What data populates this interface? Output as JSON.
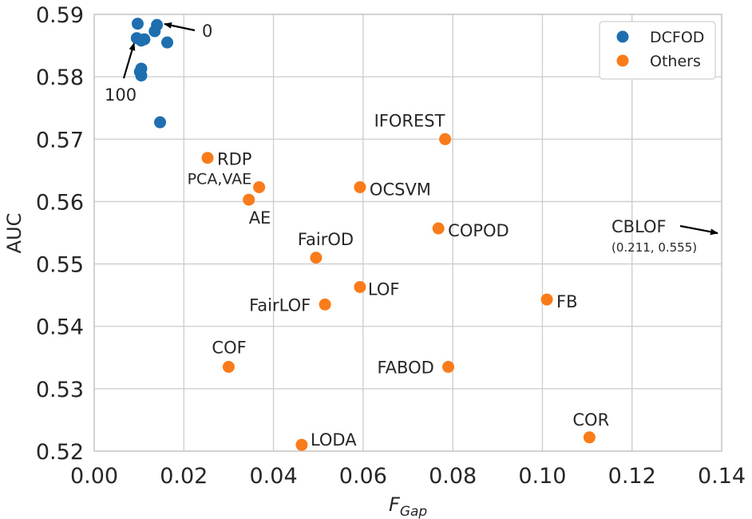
{
  "chart_data": {
    "type": "scatter",
    "xlabel_main": "F",
    "xlabel_sub": "Gap",
    "ylabel": "AUC",
    "xlim": [
      0.0,
      0.14
    ],
    "ylim": [
      0.52,
      0.59
    ],
    "x_ticks": [
      "0.00",
      "0.02",
      "0.04",
      "0.06",
      "0.08",
      "0.10",
      "0.12",
      "0.14"
    ],
    "y_ticks": [
      "0.52",
      "0.53",
      "0.54",
      "0.55",
      "0.56",
      "0.57",
      "0.58",
      "0.59"
    ],
    "grid": true,
    "legend_position": "top-right",
    "colors": {
      "DCFOD": "#1f6fb0",
      "Others": "#f97b1a"
    },
    "series": [
      {
        "name": "DCFOD",
        "points": [
          {
            "x": 0.0097,
            "y": 0.5885
          },
          {
            "x": 0.014,
            "y": 0.5883
          },
          {
            "x": 0.0135,
            "y": 0.5873
          },
          {
            "x": 0.0095,
            "y": 0.5862
          },
          {
            "x": 0.0112,
            "y": 0.586
          },
          {
            "x": 0.0105,
            "y": 0.5858
          },
          {
            "x": 0.0163,
            "y": 0.5855
          },
          {
            "x": 0.0105,
            "y": 0.5813
          },
          {
            "x": 0.0102,
            "y": 0.5808
          },
          {
            "x": 0.0105,
            "y": 0.5802
          },
          {
            "x": 0.0147,
            "y": 0.5727
          }
        ]
      },
      {
        "name": "Others",
        "points": [
          {
            "name": "IFOREST",
            "x": 0.0783,
            "y": 0.57
          },
          {
            "name": "RDP",
            "x": 0.0253,
            "y": 0.567
          },
          {
            "name": "PCA,VAE",
            "x": 0.0368,
            "y": 0.5623
          },
          {
            "name": "OCSVM",
            "x": 0.0593,
            "y": 0.5623
          },
          {
            "name": "AE",
            "x": 0.0345,
            "y": 0.5603
          },
          {
            "name": "COPOD",
            "x": 0.0768,
            "y": 0.5557
          },
          {
            "name": "FairOD",
            "x": 0.0495,
            "y": 0.551
          },
          {
            "name": "LOF",
            "x": 0.0593,
            "y": 0.5463
          },
          {
            "name": "FB",
            "x": 0.101,
            "y": 0.5443
          },
          {
            "name": "FairLOF",
            "x": 0.0515,
            "y": 0.5435
          },
          {
            "name": "COF",
            "x": 0.03,
            "y": 0.5335
          },
          {
            "name": "FABOD",
            "x": 0.079,
            "y": 0.5335
          },
          {
            "name": "COR",
            "x": 0.1105,
            "y": 0.5222
          },
          {
            "name": "LODA",
            "x": 0.0463,
            "y": 0.521
          }
        ]
      }
    ],
    "annotations": {
      "dcfod_start": "0",
      "dcfod_end": "100",
      "offscreen_name": "CBLOF",
      "offscreen_value": "(0.211, 0.555)"
    }
  }
}
